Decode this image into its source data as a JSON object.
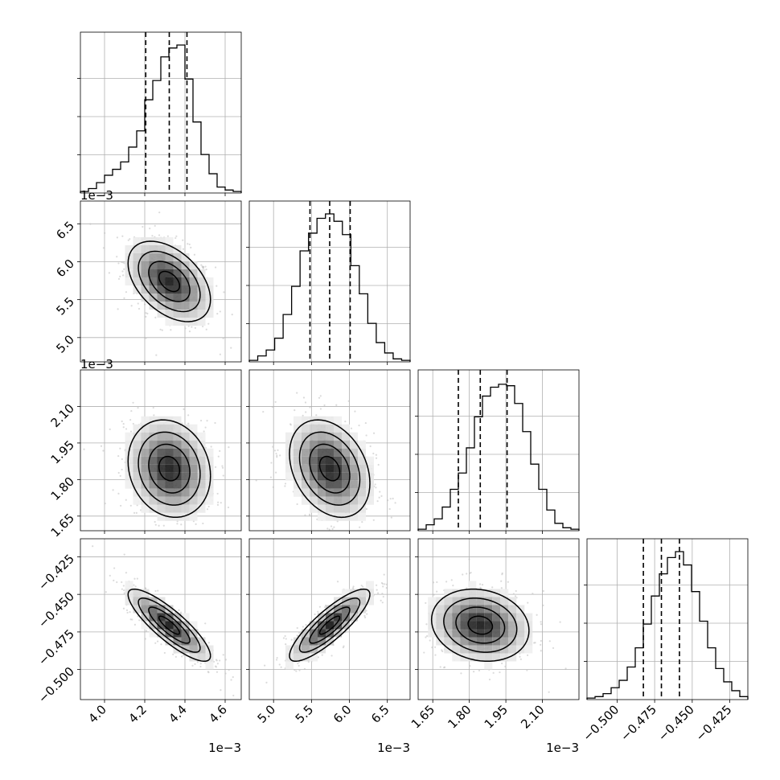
{
  "chart_data": {
    "type": "corner",
    "n_params": 4,
    "params": [
      {
        "range": [
          3.88,
          4.68
        ],
        "ticks": [
          4.0,
          4.2,
          4.4,
          4.6
        ],
        "tick_labels": [
          "4.0",
          "4.2",
          "4.4",
          "4.6"
        ],
        "offset_text": "1e−3",
        "quantiles": [
          4.205,
          4.322,
          4.41
        ],
        "hist_heights": [
          0.01,
          0.03,
          0.07,
          0.12,
          0.16,
          0.21,
          0.31,
          0.42,
          0.63,
          0.76,
          0.92,
          0.98,
          1.0,
          0.77,
          0.48,
          0.26,
          0.13,
          0.04,
          0.02,
          0.01
        ]
      },
      {
        "range": [
          4.68,
          6.8
        ],
        "ticks": [
          5.0,
          5.5,
          6.0,
          6.5
        ],
        "tick_labels": [
          "5.0",
          "5.5",
          "6.0",
          "6.5"
        ],
        "offset_text": "1e−3",
        "quantiles": [
          5.48,
          5.74,
          6.01
        ],
        "hist_heights": [
          0.01,
          0.04,
          0.08,
          0.16,
          0.32,
          0.51,
          0.75,
          0.87,
          0.97,
          1.0,
          0.95,
          0.86,
          0.65,
          0.46,
          0.26,
          0.13,
          0.06,
          0.02,
          0.01
        ]
      },
      {
        "range": [
          1.59,
          2.25
        ],
        "ticks": [
          1.65,
          1.8,
          1.95,
          2.1
        ],
        "tick_labels": [
          "1.65",
          "1.80",
          "1.95",
          "2.10"
        ],
        "offset_text": "1e−3",
        "quantiles": [
          1.755,
          1.845,
          1.955
        ],
        "hist_heights": [
          0.01,
          0.04,
          0.08,
          0.16,
          0.28,
          0.39,
          0.56,
          0.77,
          0.91,
          0.97,
          0.99,
          0.98,
          0.86,
          0.67,
          0.45,
          0.28,
          0.14,
          0.05,
          0.02,
          0.01
        ]
      },
      {
        "range": [
          -0.52,
          -0.413
        ],
        "ticks": [
          -0.5,
          -0.475,
          -0.45,
          -0.425
        ],
        "tick_labels": [
          "−0.500",
          "−0.475",
          "−0.450",
          "−0.425"
        ],
        "offset_text": "",
        "quantiles": [
          -0.4825,
          -0.4705,
          -0.4585
        ],
        "hist_heights": [
          0.01,
          0.02,
          0.04,
          0.08,
          0.13,
          0.22,
          0.35,
          0.51,
          0.7,
          0.85,
          0.96,
          1.0,
          0.91,
          0.73,
          0.53,
          0.35,
          0.21,
          0.12,
          0.06,
          0.02
        ]
      }
    ],
    "correlations": [
      [
        null,
        null,
        null,
        null
      ],
      [
        -0.45,
        null,
        null,
        null
      ],
      [
        -0.15,
        -0.3,
        null,
        null
      ],
      [
        -0.85,
        0.85,
        -0.15,
        null
      ]
    ],
    "grid": true,
    "quantile_style": "dashed",
    "contours": 4
  }
}
